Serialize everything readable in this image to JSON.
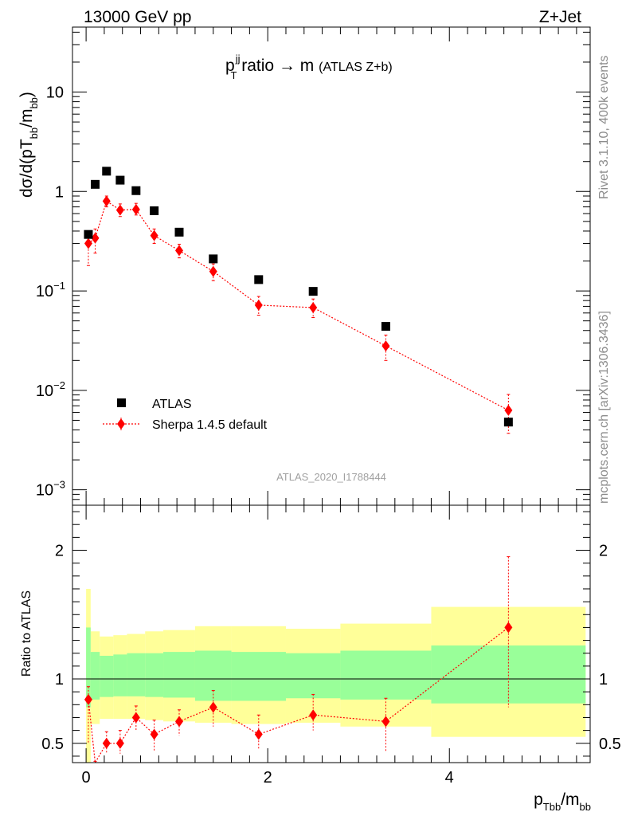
{
  "header": {
    "energy_label": "13000 GeV pp",
    "process_label": "Z+Jet"
  },
  "side_labels": {
    "rivet": "Rivet 3.1.10,  400k events",
    "source": "mcplots.cern.ch [arXiv:1306.3436]"
  },
  "chart_data": [
    {
      "type": "scatter",
      "panel": "main",
      "title": "p_T^jj ratio → m (ATLAS Z+b)",
      "title_parts": {
        "p": "p",
        "sup": "jj",
        "sub": "T",
        "rest": " ratio → m",
        "small": "(ATLAS Z+b)"
      },
      "ylabel": "dσ/d(pT_bb/m_bb)",
      "ylabel_parts": {
        "main": "dσ/d(pT",
        "sub1": "bb",
        "mid": "/m",
        "sub2": "bb",
        "end": ")"
      },
      "yscale": "log",
      "ylim": [
        0.0007,
        45
      ],
      "xlim": [
        -0.15,
        5.55
      ],
      "yticks": [
        0.001,
        0.01,
        0.1,
        1,
        10
      ],
      "ytick_labels": [
        {
          "base": "10",
          "exp": "−3"
        },
        {
          "base": "10",
          "exp": "−2"
        },
        {
          "base": "10",
          "exp": "−1"
        },
        {
          "base": "1",
          "exp": ""
        },
        {
          "base": "10",
          "exp": ""
        }
      ],
      "watermark": "ATLAS_2020_I1788444",
      "legend_position": "bottom-left",
      "series": [
        {
          "name": "ATLAS",
          "marker": "square",
          "color": "#000000",
          "x": [
            0.025,
            0.1,
            0.225,
            0.375,
            0.55,
            0.75,
            1.025,
            1.4,
            1.9,
            2.5,
            3.3,
            4.65
          ],
          "y": [
            0.37,
            1.18,
            1.6,
            1.3,
            1.02,
            0.64,
            0.39,
            0.21,
            0.13,
            0.099,
            0.044,
            0.0048
          ]
        },
        {
          "name": "Sherpa 1.4.5 default",
          "marker": "diamond",
          "color": "#ff0000",
          "x": [
            0.025,
            0.1,
            0.225,
            0.375,
            0.55,
            0.75,
            1.025,
            1.4,
            1.9,
            2.5,
            3.3,
            4.65
          ],
          "y": [
            0.3,
            0.34,
            0.8,
            0.65,
            0.66,
            0.36,
            0.255,
            0.157,
            0.072,
            0.068,
            0.028,
            0.0063
          ],
          "yerr_low": [
            0.12,
            0.1,
            0.1,
            0.09,
            0.08,
            0.06,
            0.04,
            0.03,
            0.015,
            0.014,
            0.008,
            0.0026
          ],
          "yerr_high": [
            0.08,
            0.08,
            0.1,
            0.1,
            0.1,
            0.06,
            0.04,
            0.03,
            0.016,
            0.015,
            0.008,
            0.0028
          ]
        }
      ]
    },
    {
      "type": "scatter",
      "panel": "ratio",
      "ylabel": "Ratio to ATLAS",
      "xlabel": "p_Tbb/m_bb",
      "xlabel_parts": {
        "p": "p",
        "sub1": "Tbb",
        "mid": "/m",
        "sub2": "bb"
      },
      "xlim": [
        -0.15,
        5.55
      ],
      "ylim": [
        0.35,
        2.35
      ],
      "xticks": [
        0,
        2,
        4
      ],
      "xtick_labels": [
        "0",
        "2",
        "4"
      ],
      "yticks": [
        0.5,
        1,
        2
      ],
      "ytick_labels": [
        "0.5",
        "1",
        "2"
      ],
      "bands": {
        "x_edges": [
          0.0,
          0.05,
          0.15,
          0.3,
          0.45,
          0.65,
          0.85,
          1.2,
          1.6,
          2.2,
          2.8,
          3.8,
          5.5
        ],
        "green_low": [
          0.78,
          0.84,
          0.86,
          0.865,
          0.865,
          0.86,
          0.855,
          0.83,
          0.83,
          0.85,
          0.84,
          0.81
        ],
        "green_high": [
          1.4,
          1.21,
          1.18,
          1.19,
          1.2,
          1.2,
          1.21,
          1.22,
          1.21,
          1.2,
          1.22,
          1.26
        ],
        "yellow_low": [
          0.3,
          0.65,
          0.69,
          0.69,
          0.69,
          0.68,
          0.67,
          0.66,
          0.65,
          0.66,
          0.63,
          0.55
        ],
        "yellow_high": [
          1.7,
          1.37,
          1.33,
          1.34,
          1.35,
          1.37,
          1.38,
          1.41,
          1.41,
          1.39,
          1.43,
          1.56
        ]
      },
      "series": [
        {
          "name": "Sherpa 1.4.5 default",
          "color": "#ff0000",
          "x": [
            0.025,
            0.1,
            0.225,
            0.375,
            0.55,
            0.75,
            1.025,
            1.4,
            1.9,
            2.5,
            3.3,
            4.65
          ],
          "y": [
            0.84,
            0.27,
            0.5,
            0.5,
            0.7,
            0.57,
            0.67,
            0.78,
            0.57,
            0.72,
            0.67,
            1.4
          ],
          "yerr_low": [
            0.34,
            0.1,
            0.08,
            0.08,
            0.1,
            0.13,
            0.11,
            0.15,
            0.12,
            0.12,
            0.23,
            0.62
          ],
          "yerr_high": [
            0.1,
            0.09,
            0.09,
            0.1,
            0.09,
            0.11,
            0.09,
            0.13,
            0.15,
            0.16,
            0.18,
            0.55
          ]
        }
      ]
    }
  ]
}
